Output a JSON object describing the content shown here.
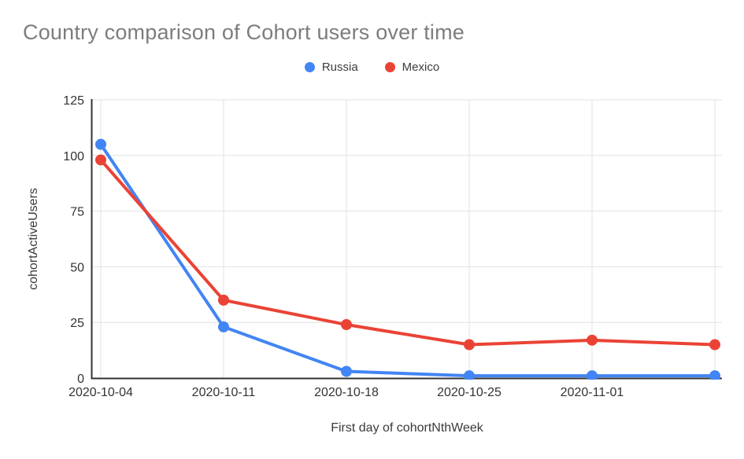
{
  "chart": {
    "title": "Country comparison of Cohort users over time",
    "x_axis_title": "First day of cohortNthWeek",
    "y_axis_title": "cohortActiveUsers"
  },
  "chart_data": {
    "type": "line",
    "title": "Country comparison of Cohort users over time",
    "xlabel": "First day of cohortNthWeek",
    "ylabel": "cohortActiveUsers",
    "categories": [
      "2020-10-04",
      "2020-10-11",
      "2020-10-18",
      "2020-10-25",
      "2020-11-01",
      ""
    ],
    "series": [
      {
        "name": "Russia",
        "color": "#4285F4",
        "values": [
          105,
          23,
          3,
          1,
          1,
          1
        ]
      },
      {
        "name": "Mexico",
        "color": "#EA4335",
        "values": [
          98,
          35,
          24,
          15,
          17,
          15
        ]
      }
    ],
    "ylim": [
      0,
      125
    ],
    "yticks": [
      0,
      25,
      50,
      75,
      100,
      125
    ],
    "grid": true,
    "legend_position": "top-center"
  },
  "style": {
    "title_color": "#7d7d7d",
    "tick_color": "#333333",
    "grid_color": "#e2e2e2",
    "axis_color": "#333333",
    "background": "#ffffff"
  }
}
